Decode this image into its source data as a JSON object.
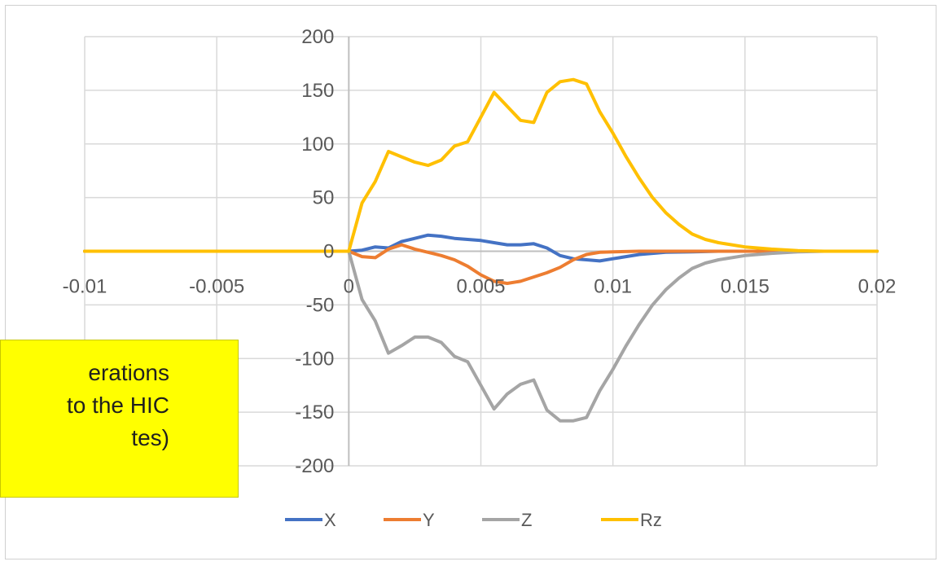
{
  "annotation": {
    "text": "erations\nto the HIC\ntes)"
  },
  "colors": {
    "X": "#4472c4",
    "Y": "#ed7d31",
    "Z": "#a5a5a5",
    "Rz": "#ffc000",
    "grid": "#d9d9d9",
    "axis": "#bfbfbf",
    "annotation_bg": "#ffff00"
  },
  "chart_data": {
    "type": "line",
    "title": "",
    "xlabel": "",
    "ylabel": "",
    "xlim": [
      -0.01,
      0.02
    ],
    "ylim": [
      -200,
      200
    ],
    "x_ticks": [
      -0.01,
      -0.005,
      0,
      0.005,
      0.01,
      0.015,
      0.02
    ],
    "x_tick_labels": [
      "-0.01",
      "-0.005",
      "0",
      "0.005",
      "0.01",
      "0.015",
      "0.02"
    ],
    "y_ticks": [
      -200,
      -150,
      -100,
      -50,
      0,
      50,
      100,
      150,
      200
    ],
    "y_tick_labels": [
      "-200",
      "-150",
      "-100",
      "-50",
      "0",
      "50",
      "100",
      "150",
      "200"
    ],
    "grid": true,
    "legend_position": "bottom",
    "series": [
      {
        "name": "X",
        "x": [
          -0.01,
          0,
          0.0005,
          0.001,
          0.0015,
          0.002,
          0.0025,
          0.003,
          0.0035,
          0.004,
          0.0045,
          0.005,
          0.0055,
          0.006,
          0.0065,
          0.007,
          0.0075,
          0.008,
          0.0085,
          0.009,
          0.0095,
          0.01,
          0.011,
          0.012,
          0.013,
          0.014,
          0.015,
          0.016,
          0.017,
          0.018,
          0.02
        ],
        "y": [
          0,
          0,
          1,
          4,
          3,
          9,
          12,
          15,
          14,
          12,
          11,
          10,
          8,
          6,
          6,
          7,
          3,
          -4,
          -7,
          -8,
          -9,
          -7,
          -3,
          -1,
          -0.5,
          0,
          0,
          0,
          0,
          0,
          0
        ]
      },
      {
        "name": "Y",
        "x": [
          -0.01,
          0,
          0.0005,
          0.001,
          0.0015,
          0.002,
          0.0025,
          0.003,
          0.0035,
          0.004,
          0.0045,
          0.005,
          0.0055,
          0.006,
          0.0065,
          0.007,
          0.0075,
          0.008,
          0.0085,
          0.009,
          0.0095,
          0.01,
          0.011,
          0.012,
          0.013,
          0.014,
          0.015,
          0.016,
          0.017,
          0.018,
          0.02
        ],
        "y": [
          0,
          0,
          -5,
          -6,
          2,
          6,
          2,
          -1,
          -4,
          -8,
          -14,
          -22,
          -28,
          -30,
          -28,
          -24,
          -20,
          -15,
          -8,
          -3,
          -1,
          -0.5,
          0,
          0,
          0,
          0,
          0,
          0,
          0,
          0,
          0
        ]
      },
      {
        "name": "Z",
        "x": [
          -0.01,
          0,
          0.0005,
          0.001,
          0.0015,
          0.002,
          0.0025,
          0.003,
          0.0035,
          0.004,
          0.0045,
          0.005,
          0.0055,
          0.006,
          0.0065,
          0.007,
          0.0075,
          0.008,
          0.0085,
          0.009,
          0.0095,
          0.01,
          0.0105,
          0.011,
          0.0115,
          0.012,
          0.0125,
          0.013,
          0.0135,
          0.014,
          0.015,
          0.016,
          0.017,
          0.018,
          0.02
        ],
        "y": [
          0,
          0,
          -45,
          -65,
          -95,
          -88,
          -80,
          -80,
          -85,
          -98,
          -103,
          -125,
          -147,
          -133,
          -124,
          -120,
          -148,
          -158,
          -158,
          -155,
          -130,
          -110,
          -88,
          -68,
          -50,
          -36,
          -25,
          -16,
          -11,
          -8,
          -4,
          -2,
          -0.5,
          0,
          0
        ]
      },
      {
        "name": "Rz",
        "x": [
          -0.01,
          0,
          0.0005,
          0.001,
          0.0015,
          0.002,
          0.0025,
          0.003,
          0.0035,
          0.004,
          0.0045,
          0.005,
          0.0055,
          0.006,
          0.0065,
          0.007,
          0.0075,
          0.008,
          0.0085,
          0.009,
          0.0095,
          0.01,
          0.0105,
          0.011,
          0.0115,
          0.012,
          0.0125,
          0.013,
          0.0135,
          0.014,
          0.015,
          0.016,
          0.017,
          0.018,
          0.02
        ],
        "y": [
          0,
          0,
          45,
          65,
          93,
          88,
          83,
          80,
          85,
          98,
          102,
          125,
          148,
          135,
          122,
          120,
          148,
          158,
          160,
          156,
          130,
          110,
          88,
          68,
          50,
          36,
          25,
          16,
          11,
          8,
          4,
          2,
          0.5,
          0,
          0
        ]
      }
    ]
  }
}
